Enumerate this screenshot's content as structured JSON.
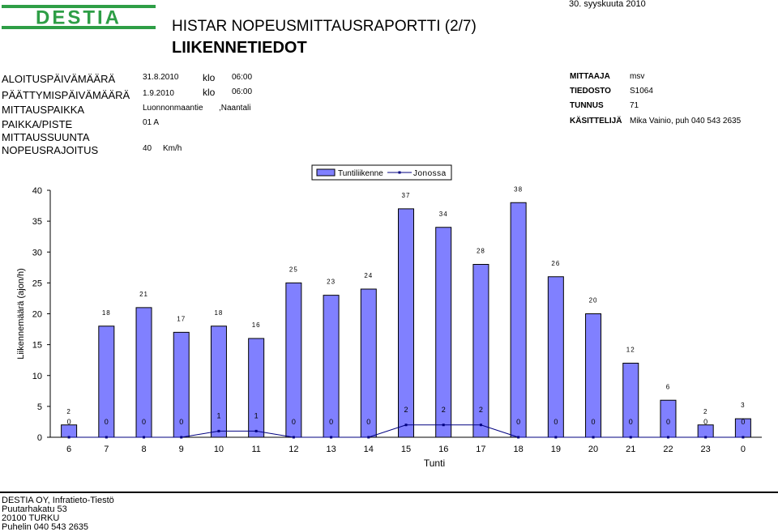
{
  "report_date": "30. syyskuuta 2010",
  "logo_text": "DESTIA",
  "title_line1": "HISTAR NOPEUSMITTAUSRAPORTTI (2/7)",
  "title_line2": "LIIKENNETIEDOT",
  "info": {
    "start_label": "ALOITUSPÄIVÄMÄÄRÄ",
    "start_date": "31.8.2010",
    "start_klo": "klo",
    "start_time": "06:00",
    "end_label": "PÄÄTTYMISPÄIVÄMÄÄRÄ",
    "end_date": "1.9.2010",
    "end_klo": "klo",
    "end_time": "06:00",
    "place_label": "MITTAUSPAIKKA",
    "place_value": "Luonnonmaantie",
    "place_city": ",Naantali",
    "lane_label": "PAIKKA/PISTE",
    "lane_value": "01 A",
    "direction_label": "MITTAUSSUUNTA",
    "speed_limit_label": "NOPEUSRAJOITUS",
    "speed_limit_value": "40",
    "speed_limit_unit": "Km/h"
  },
  "right_info": {
    "measurer_label": "MITTAAJA",
    "measurer_value": "msv",
    "file_label": "TIEDOSTO",
    "file_value": "S1064",
    "id_label": "TUNNUS",
    "id_value": "71",
    "handler_label": "KÄSITTELIJÄ",
    "handler_value": "Mika Vainio, puh 040 543 2635"
  },
  "chart_data": {
    "type": "bar",
    "xlabel": "Tunti",
    "ylabel": "Liikennemäärä (ajon/h)",
    "ylim": [
      0,
      40
    ],
    "yticks": [
      0,
      5,
      10,
      15,
      20,
      25,
      30,
      35,
      40
    ],
    "categories": [
      "6",
      "7",
      "8",
      "9",
      "10",
      "11",
      "12",
      "13",
      "14",
      "15",
      "16",
      "17",
      "18",
      "19",
      "20",
      "21",
      "22",
      "23",
      "0"
    ],
    "legend_position": "top",
    "grid": false,
    "series": [
      {
        "name": "Tuntiliikenne",
        "kind": "bar",
        "color": "#8080FF",
        "values": [
          2,
          18,
          21,
          17,
          18,
          16,
          25,
          23,
          24,
          37,
          34,
          28,
          38,
          26,
          20,
          12,
          6,
          2,
          3
        ],
        "labels": [
          "2",
          "18",
          "21",
          "17",
          "18",
          "16",
          "25",
          "23",
          "24",
          "37",
          "34",
          "28",
          "38",
          "26",
          "20",
          "12",
          "6",
          "2",
          "3"
        ]
      },
      {
        "name": "Jonossa",
        "kind": "line",
        "color": "#000080",
        "values": [
          0,
          0,
          0,
          0,
          1,
          1,
          0,
          0,
          0,
          2,
          2,
          2,
          0,
          0,
          0,
          0,
          0,
          0,
          0
        ],
        "labels": [
          "0",
          "0",
          "0",
          "0",
          "1",
          "1",
          "0",
          "0",
          "0",
          "2",
          "2",
          "2",
          "0",
          "0",
          "0",
          "0",
          "0",
          "0",
          "0"
        ]
      }
    ]
  },
  "footer": {
    "line1": "DESTIA OY, Infratieto-Tiestö",
    "line2": "Puutarhakatu 53",
    "line3": "20100 TURKU",
    "line4": "Puhelin  040 543 2635"
  }
}
